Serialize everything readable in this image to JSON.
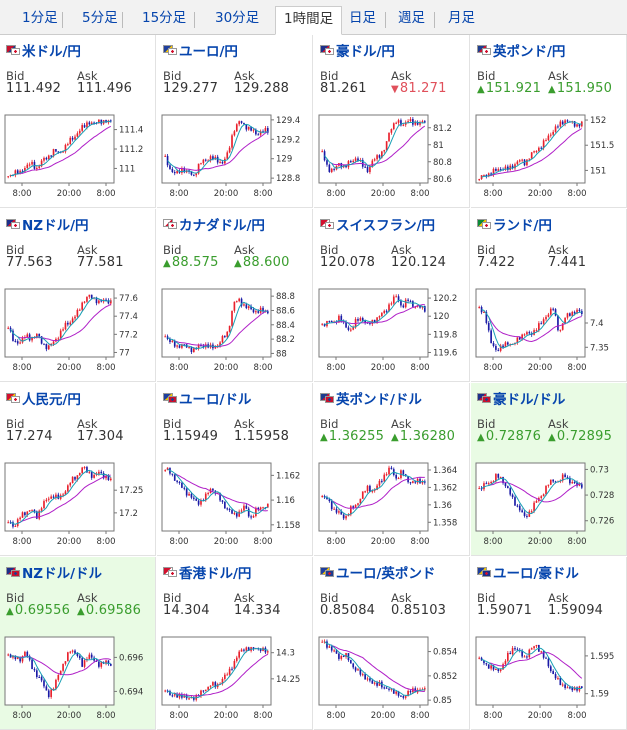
{
  "tabs": [
    {
      "label": "1分足",
      "active": false
    },
    {
      "label": "5分足",
      "active": false
    },
    {
      "label": "15分足",
      "active": false
    },
    {
      "label": "30分足",
      "active": false
    },
    {
      "label": "1時間足",
      "active": true
    },
    {
      "label": "日足",
      "active": false
    },
    {
      "label": "週足",
      "active": false
    },
    {
      "label": "月足",
      "active": false
    }
  ],
  "labels": {
    "bid": "Bid",
    "ask": "Ask"
  },
  "x_ticks": [
    "8:00",
    "20:00",
    "8:00"
  ],
  "colors": {
    "link": "#0645ad",
    "up": "#3a9d2e",
    "down": "#e0505b",
    "candle_up": "#e8202c",
    "candle_down": "#1a1aa6",
    "ma_short": "#18a0b5",
    "ma_long": "#b020c8",
    "highlight": "#e9fbe4"
  },
  "pairs": [
    {
      "name": "米ドル/円",
      "flags": [
        "us-flag",
        "jp-flag"
      ],
      "bid": "111.492",
      "ask": "111.496",
      "dir": "",
      "highlight": false,
      "y_ticks": [
        "111.4",
        "111.2",
        "111"
      ],
      "ylim": [
        110.85,
        111.55
      ],
      "path": [
        110.92,
        110.96,
        110.95,
        111.02,
        111.05,
        111.0,
        111.08,
        111.12,
        111.18,
        111.16,
        111.22,
        111.3,
        111.35,
        111.42,
        111.48,
        111.45,
        111.5,
        111.47,
        111.49
      ]
    },
    {
      "name": "ユーロ/円",
      "flags": [
        "eu-flag",
        "jp-flag"
      ],
      "bid": "129.277",
      "ask": "129.288",
      "dir": "",
      "highlight": false,
      "y_ticks": [
        "129.4",
        "129.2",
        "129",
        "128.8"
      ],
      "ylim": [
        128.75,
        129.45
      ],
      "path": [
        129.0,
        128.88,
        128.84,
        128.9,
        128.86,
        128.82,
        128.95,
        128.98,
        129.02,
        128.98,
        128.96,
        129.05,
        129.3,
        129.38,
        129.34,
        129.3,
        129.25,
        129.29,
        129.28
      ]
    },
    {
      "name": "豪ドル/円",
      "flags": [
        "au-flag",
        "jp-flag"
      ],
      "bid": "81.261",
      "ask": "81.271",
      "dir": "down",
      "highlight": false,
      "y_ticks": [
        "81.2",
        "81",
        "80.8",
        "80.6"
      ],
      "ylim": [
        80.55,
        81.35
      ],
      "path": [
        80.9,
        80.72,
        80.7,
        80.78,
        80.74,
        80.8,
        80.85,
        80.76,
        80.7,
        80.82,
        80.88,
        80.95,
        81.2,
        81.28,
        81.22,
        81.3,
        81.24,
        81.27,
        81.26
      ]
    },
    {
      "name": "英ポンド/円",
      "flags": [
        "gb-flag",
        "jp-flag"
      ],
      "bid": "151.921",
      "ask": "151.950",
      "dir": "up",
      "highlight": false,
      "y_ticks": [
        "152",
        "151.5",
        "151"
      ],
      "ylim": [
        150.75,
        152.1
      ],
      "path": [
        150.85,
        150.9,
        150.95,
        151.0,
        151.05,
        151.02,
        151.1,
        151.2,
        151.15,
        151.3,
        151.4,
        151.5,
        151.65,
        151.8,
        151.9,
        152.0,
        151.95,
        151.9,
        151.93
      ]
    },
    {
      "name": "NZドル/円",
      "flags": [
        "nz-flag",
        "jp-flag"
      ],
      "bid": "77.563",
      "ask": "77.581",
      "dir": "",
      "highlight": false,
      "y_ticks": [
        "77.6",
        "77.4",
        "77.2",
        "77"
      ],
      "ylim": [
        76.95,
        77.7
      ],
      "path": [
        77.3,
        77.1,
        77.12,
        77.18,
        77.15,
        77.2,
        77.1,
        77.05,
        77.12,
        77.2,
        77.3,
        77.35,
        77.42,
        77.55,
        77.62,
        77.6,
        77.55,
        77.58,
        77.56
      ]
    },
    {
      "name": "カナダドル/円",
      "flags": [
        "ca-flag",
        "jp-flag"
      ],
      "bid": "88.575",
      "ask": "88.600",
      "dir": "up",
      "highlight": false,
      "y_ticks": [
        "88.8",
        "88.6",
        "88.4",
        "88.2",
        "88"
      ],
      "ylim": [
        87.95,
        88.9
      ],
      "path": [
        88.25,
        88.15,
        88.1,
        88.12,
        88.08,
        88.05,
        88.1,
        88.12,
        88.08,
        88.1,
        88.2,
        88.3,
        88.7,
        88.75,
        88.65,
        88.62,
        88.58,
        88.6,
        88.58
      ]
    },
    {
      "name": "スイスフラン/円",
      "flags": [
        "ch-flag",
        "jp-flag"
      ],
      "bid": "120.078",
      "ask": "120.124",
      "dir": "",
      "highlight": false,
      "y_ticks": [
        "120.2",
        "120",
        "119.8",
        "119.6"
      ],
      "ylim": [
        119.55,
        120.3
      ],
      "path": [
        119.9,
        119.95,
        119.92,
        120.0,
        119.88,
        119.85,
        119.95,
        119.98,
        119.9,
        119.95,
        120.0,
        120.05,
        120.15,
        120.22,
        120.1,
        120.18,
        120.12,
        120.1,
        120.08
      ]
    },
    {
      "name": "ランド/円",
      "flags": [
        "za-flag",
        "jp-flag"
      ],
      "bid": "7.422",
      "ask": "7.441",
      "dir": "",
      "highlight": false,
      "y_ticks": [
        "7.4",
        "7.35"
      ],
      "ylim": [
        7.33,
        7.47
      ],
      "path": [
        7.43,
        7.42,
        7.36,
        7.345,
        7.35,
        7.36,
        7.355,
        7.37,
        7.38,
        7.375,
        7.39,
        7.4,
        7.42,
        7.43,
        7.38,
        7.41,
        7.42,
        7.425,
        7.42
      ]
    },
    {
      "name": "人民元/円",
      "flags": [
        "cn-flag",
        "jp-flag"
      ],
      "bid": "17.274",
      "ask": "17.304",
      "dir": "",
      "highlight": false,
      "y_ticks": [
        "17.25",
        "17.2"
      ],
      "ylim": [
        17.16,
        17.31
      ],
      "path": [
        17.18,
        17.17,
        17.19,
        17.2,
        17.21,
        17.19,
        17.22,
        17.23,
        17.24,
        17.23,
        17.25,
        17.27,
        17.28,
        17.3,
        17.29,
        17.28,
        17.29,
        17.28,
        17.27
      ]
    },
    {
      "name": "ユーロ/ドル",
      "flags": [
        "eu-flag",
        "us-flag"
      ],
      "bid": "1.15949",
      "ask": "1.15958",
      "dir": "",
      "highlight": false,
      "y_ticks": [
        "1.162",
        "1.16",
        "1.158"
      ],
      "ylim": [
        1.1575,
        1.163
      ],
      "path": [
        1.1625,
        1.1622,
        1.1615,
        1.161,
        1.1605,
        1.16,
        1.1598,
        1.1602,
        1.161,
        1.1605,
        1.1598,
        1.1592,
        1.1588,
        1.159,
        1.1595,
        1.1585,
        1.1592,
        1.1595,
        1.1595
      ]
    },
    {
      "name": "英ポンド/ドル",
      "flags": [
        "gb-flag",
        "us-flag"
      ],
      "bid": "1.36255",
      "ask": "1.36280",
      "dir": "up",
      "highlight": false,
      "y_ticks": [
        "1.364",
        "1.362",
        "1.36",
        "1.358"
      ],
      "ylim": [
        1.357,
        1.3648
      ],
      "path": [
        1.361,
        1.3605,
        1.3595,
        1.359,
        1.3585,
        1.3595,
        1.36,
        1.3612,
        1.362,
        1.3615,
        1.3625,
        1.3635,
        1.3642,
        1.363,
        1.3638,
        1.3628,
        1.3625,
        1.3628,
        1.3626
      ]
    },
    {
      "name": "豪ドル/ドル",
      "flags": [
        "au-flag",
        "us-flag"
      ],
      "bid": "0.72876",
      "ask": "0.72895",
      "dir": "up",
      "highlight": true,
      "y_ticks": [
        "0.73",
        "0.728",
        "0.726"
      ],
      "ylim": [
        0.7252,
        0.7305
      ],
      "path": [
        0.7285,
        0.7288,
        0.729,
        0.7295,
        0.7292,
        0.7285,
        0.7275,
        0.727,
        0.7262,
        0.7268,
        0.7275,
        0.728,
        0.7288,
        0.7292,
        0.729,
        0.7296,
        0.729,
        0.7288,
        0.7288
      ]
    },
    {
      "name": "NZドル/ドル",
      "flags": [
        "nz-flag",
        "us-flag"
      ],
      "bid": "0.69556",
      "ask": "0.69586",
      "dir": "up",
      "highlight": true,
      "y_ticks": [
        "0.696",
        "0.694"
      ],
      "ylim": [
        0.6932,
        0.6972
      ],
      "path": [
        0.6962,
        0.696,
        0.6958,
        0.6964,
        0.6955,
        0.695,
        0.6945,
        0.6938,
        0.6942,
        0.6952,
        0.6958,
        0.6965,
        0.6962,
        0.6955,
        0.6962,
        0.6958,
        0.6956,
        0.6957,
        0.6956
      ]
    },
    {
      "name": "香港ドル/円",
      "flags": [
        "hk-flag",
        "jp-flag"
      ],
      "bid": "14.304",
      "ask": "14.334",
      "dir": "",
      "highlight": false,
      "y_ticks": [
        "14.3",
        "14.25"
      ],
      "ylim": [
        14.2,
        14.33
      ],
      "path": [
        14.23,
        14.22,
        14.215,
        14.22,
        14.21,
        14.215,
        14.22,
        14.23,
        14.24,
        14.235,
        14.25,
        14.26,
        14.28,
        14.3,
        14.31,
        14.305,
        14.31,
        14.305,
        14.3
      ]
    },
    {
      "name": "ユーロ/英ポンド",
      "flags": [
        "eu-flag",
        "gb-flag"
      ],
      "bid": "0.85084",
      "ask": "0.85103",
      "dir": "",
      "highlight": false,
      "y_ticks": [
        "0.854",
        "0.852",
        "0.85"
      ],
      "ylim": [
        0.8496,
        0.8552
      ],
      "path": [
        0.8548,
        0.8545,
        0.854,
        0.8535,
        0.8538,
        0.853,
        0.8525,
        0.852,
        0.8518,
        0.8512,
        0.8515,
        0.8508,
        0.851,
        0.8505,
        0.8502,
        0.8506,
        0.8508,
        0.8509,
        0.8508
      ]
    },
    {
      "name": "ユーロ/豪ドル",
      "flags": [
        "eu-flag",
        "au-flag"
      ],
      "bid": "1.59071",
      "ask": "1.59094",
      "dir": "",
      "highlight": false,
      "y_ticks": [
        "1.595",
        "1.59"
      ],
      "ylim": [
        1.5885,
        1.5975
      ],
      "path": [
        1.5945,
        1.594,
        1.5935,
        1.593,
        1.5935,
        1.595,
        1.5962,
        1.5955,
        1.5948,
        1.5958,
        1.5965,
        1.5952,
        1.594,
        1.5925,
        1.5915,
        1.591,
        1.5905,
        1.5908,
        1.5907
      ]
    }
  ]
}
